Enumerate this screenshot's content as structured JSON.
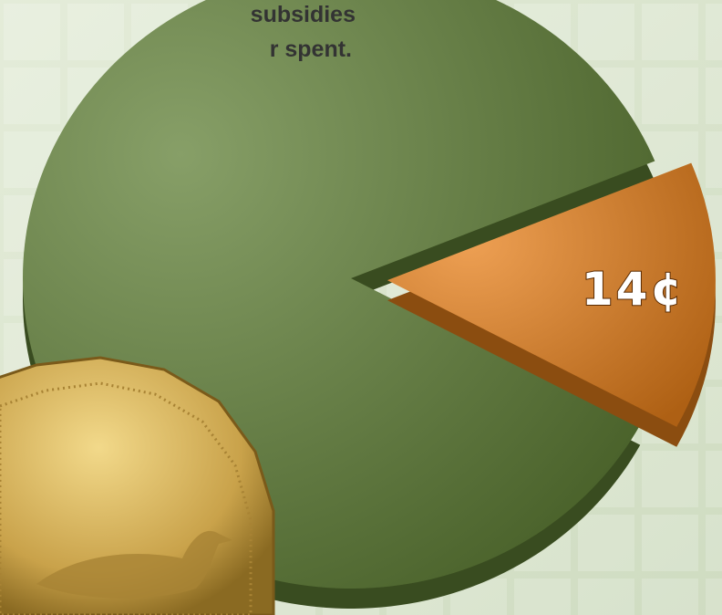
{
  "chart_data": {
    "type": "pie",
    "title_lines": [
      "subsidies",
      "r spent."
    ],
    "values": [
      86,
      14
    ],
    "value_labels": [
      null,
      "14¢"
    ],
    "colors": [
      "#5f7f35",
      "#e8801a"
    ]
  }
}
